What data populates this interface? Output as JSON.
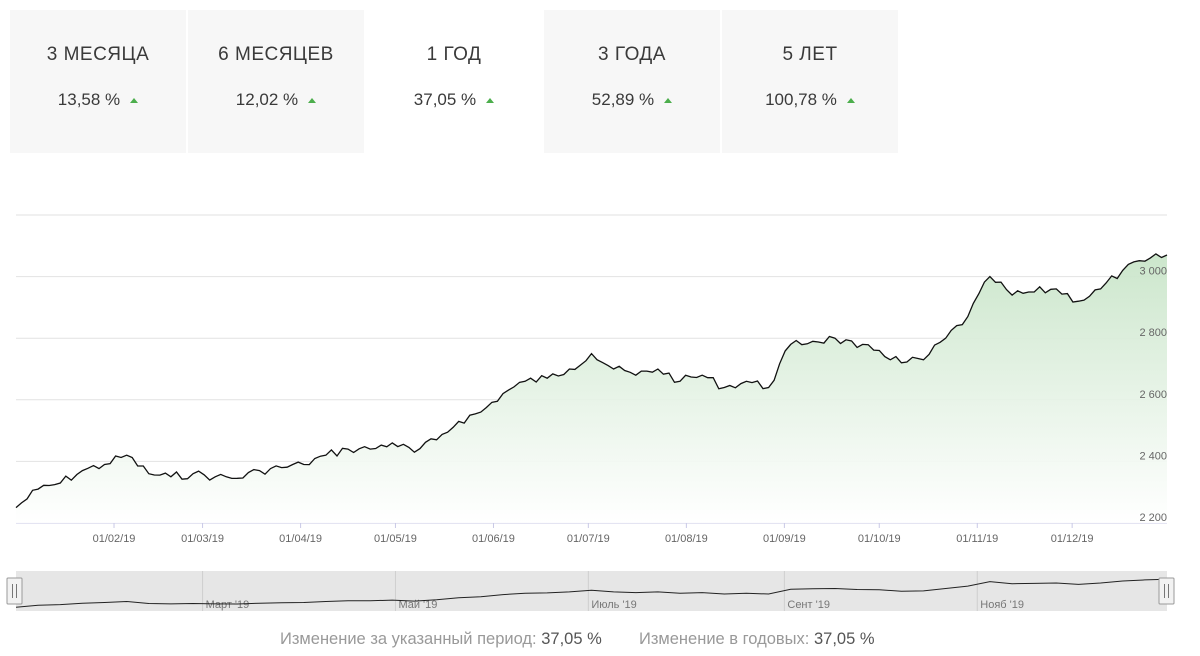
{
  "tabs": [
    {
      "label": "3 МЕСЯЦА",
      "value": "13,58 %",
      "active": false
    },
    {
      "label": "6 МЕСЯЦЕВ",
      "value": "12,02 %",
      "active": false
    },
    {
      "label": "1 ГОД",
      "value": "37,05 %",
      "active": true
    },
    {
      "label": "3 ГОДА",
      "value": "52,89 %",
      "active": false
    },
    {
      "label": "5 ЛЕТ",
      "value": "100,78 %",
      "active": false
    }
  ],
  "colors": {
    "line": "#111111",
    "fill": "#d5ebd5",
    "up_arrow": "#4cae4c",
    "tab_bg": "#f7f7f7"
  },
  "chart_data": {
    "type": "area",
    "grid": true,
    "ylim": [
      2200,
      3200
    ],
    "yticks": [
      "2 200",
      "2 400",
      "2 600",
      "2 800",
      "3 000"
    ],
    "xticks": [
      "01/02/19",
      "01/03/19",
      "01/04/19",
      "01/05/19",
      "01/06/19",
      "01/07/19",
      "01/08/19",
      "01/09/19",
      "01/10/19",
      "01/11/19",
      "01/12/19"
    ],
    "navigator_ticks": [
      "Март '19",
      "Май '19",
      "Июль '19",
      "Сент '19",
      "Нояб '19"
    ],
    "x": [
      "2019-01-01",
      "2019-01-08",
      "2019-01-15",
      "2019-01-22",
      "2019-01-29",
      "2019-02-05",
      "2019-02-12",
      "2019-02-19",
      "2019-02-26",
      "2019-03-05",
      "2019-03-12",
      "2019-03-19",
      "2019-03-26",
      "2019-04-02",
      "2019-04-09",
      "2019-04-16",
      "2019-04-23",
      "2019-04-30",
      "2019-05-07",
      "2019-05-14",
      "2019-05-21",
      "2019-05-28",
      "2019-06-04",
      "2019-06-11",
      "2019-06-18",
      "2019-06-25",
      "2019-07-02",
      "2019-07-09",
      "2019-07-16",
      "2019-07-23",
      "2019-07-30",
      "2019-08-06",
      "2019-08-13",
      "2019-08-20",
      "2019-08-27",
      "2019-09-03",
      "2019-09-10",
      "2019-09-17",
      "2019-09-24",
      "2019-10-01",
      "2019-10-08",
      "2019-10-15",
      "2019-10-22",
      "2019-10-29",
      "2019-11-05",
      "2019-11-12",
      "2019-11-19",
      "2019-11-26",
      "2019-12-03",
      "2019-12-10",
      "2019-12-17",
      "2019-12-24",
      "2019-12-31"
    ],
    "values": [
      2250,
      2310,
      2330,
      2370,
      2390,
      2420,
      2360,
      2350,
      2360,
      2350,
      2345,
      2370,
      2380,
      2390,
      2420,
      2440,
      2440,
      2460,
      2430,
      2470,
      2530,
      2560,
      2620,
      2660,
      2670,
      2700,
      2750,
      2700,
      2680,
      2700,
      2660,
      2680,
      2640,
      2660,
      2640,
      2780,
      2790,
      2800,
      2770,
      2760,
      2720,
      2730,
      2800,
      2870,
      3000,
      2940,
      2950,
      2960,
      2920,
      2960,
      3020,
      3050,
      3070
    ]
  },
  "summary": {
    "period_label": "Изменение за указанный период:",
    "period_value": "37,05 %",
    "annual_label": "Изменение в годовых:",
    "annual_value": "37,05 %"
  }
}
